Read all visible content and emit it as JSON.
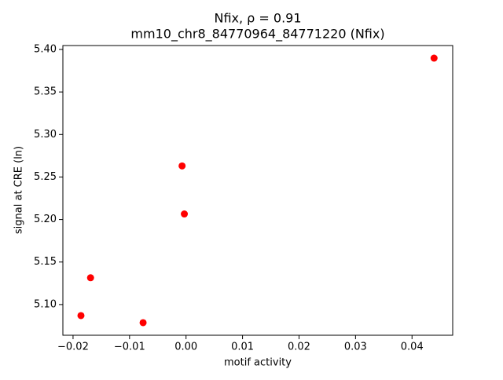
{
  "chart_data": {
    "type": "scatter",
    "title": "Nfix, ρ = 0.91",
    "subtitle": "mm10_chr8_84770964_84771220 (Nfix)",
    "x_label": "motif activity",
    "y_label": "signal at CRE (ln)",
    "color": "#ff0000",
    "x": [
      0.0439,
      -0.0007,
      -0.0003,
      -0.0169,
      -0.0186,
      -0.0076
    ],
    "values": [
      5.3898,
      5.263,
      5.2065,
      5.1315,
      5.087,
      5.0787
    ],
    "xlim": [
      -0.0218,
      0.0472
    ],
    "ylim": [
      5.0639,
      5.4046
    ],
    "xticks": [
      {
        "value": -0.02,
        "label": "−0.02"
      },
      {
        "value": -0.01,
        "label": "−0.01"
      },
      {
        "value": 0,
        "label": "0.00"
      },
      {
        "value": 0.01,
        "label": "0.01"
      },
      {
        "value": 0.02,
        "label": "0.02"
      },
      {
        "value": 0.03,
        "label": "0.03"
      },
      {
        "value": 0.04,
        "label": "0.04"
      }
    ],
    "yticks": [
      {
        "value": 5.1,
        "label": "5.10"
      },
      5.15,
      {
        "value": 5.2,
        "label": "5.20"
      },
      5.25,
      {
        "value": 5.3,
        "label": "5.30"
      },
      5.35,
      {
        "value": 5.4,
        "label": "5.40"
      }
    ],
    "grid": false
  }
}
